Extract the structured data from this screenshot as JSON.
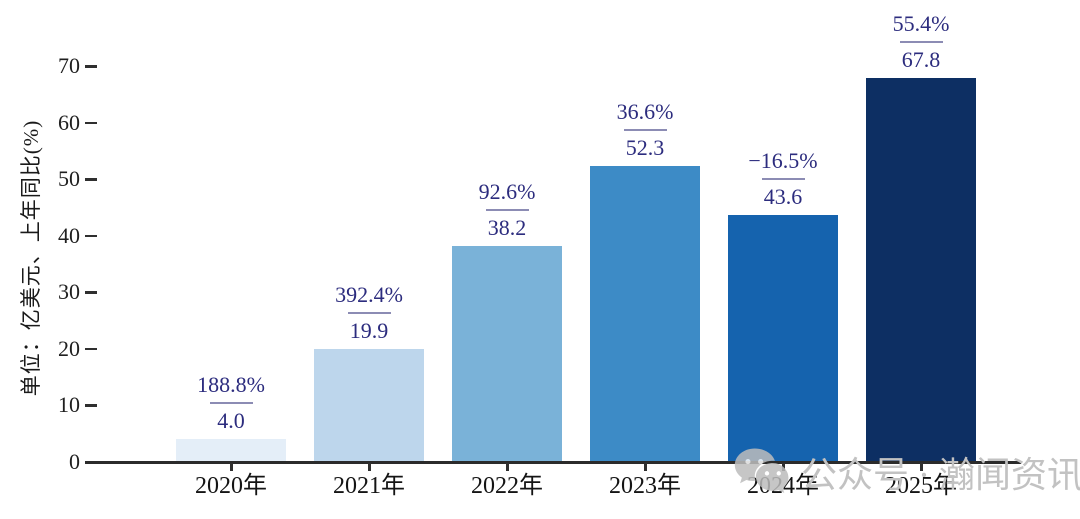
{
  "chart_data": {
    "type": "bar",
    "title": "",
    "categories": [
      "2020年",
      "2021年",
      "2022年",
      "2023年",
      "2024年",
      "2025年"
    ],
    "values": [
      4.0,
      19.9,
      38.2,
      52.3,
      43.6,
      67.8
    ],
    "value_labels": [
      "4.0",
      "19.9",
      "38.2",
      "52.3",
      "43.6",
      "67.8"
    ],
    "growth_labels": [
      "188.8%",
      "392.4%",
      "92.6%",
      "36.6%",
      "−16.5%",
      "55.4%"
    ],
    "ylabel": "单位：亿美元、上年同比(%)",
    "xlabel": "",
    "ylim": [
      0,
      70
    ],
    "yticks": [
      0,
      10,
      20,
      30,
      40,
      50,
      60,
      70
    ],
    "grid": false,
    "legend": null,
    "bar_colors": [
      "#e4eef8",
      "#bdd6ec",
      "#7ab2d8",
      "#3d8bc6",
      "#1563ae",
      "#0d2f63"
    ],
    "annotation_color": "#2c2c7e",
    "axis_color": "#2b2b2b"
  },
  "watermark": {
    "icon": "wechat-icon",
    "text": "公众号 · 瀚闻资讯"
  }
}
